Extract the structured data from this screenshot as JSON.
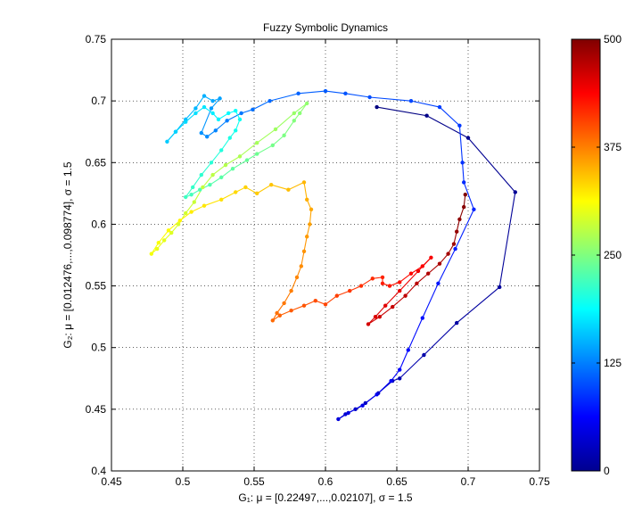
{
  "chart_data": {
    "type": "line",
    "title": "Fuzzy Symbolic Dynamics",
    "xlabel": "G₁: μ = [0.22497,...,0.02107], σ = 1.5",
    "ylabel": "G₂: μ = [0.012476,...,0.098774], σ = 1.5",
    "xlim": [
      0.45,
      0.75
    ],
    "ylim": [
      0.4,
      0.75
    ],
    "xticks": [
      "0.45",
      "0.5",
      "0.55",
      "0.6",
      "0.65",
      "0.7",
      "0.75"
    ],
    "yticks": [
      "0.4",
      "0.45",
      "0.5",
      "0.55",
      "0.6",
      "0.65",
      "0.7",
      "0.75"
    ],
    "grid": true,
    "colorbar": {
      "range": [
        0,
        500
      ],
      "ticks": [
        "0",
        "125",
        "250",
        "375",
        "500"
      ],
      "colormap": "jet"
    },
    "trajectory": {
      "t_range": [
        0,
        500
      ],
      "points": [
        [
          0.636,
          0.695
        ],
        [
          0.671,
          0.688
        ],
        [
          0.7,
          0.67
        ],
        [
          0.733,
          0.626
        ],
        [
          0.722,
          0.549
        ],
        [
          0.692,
          0.52
        ],
        [
          0.669,
          0.494
        ],
        [
          0.652,
          0.475
        ],
        [
          0.647,
          0.473
        ],
        [
          0.637,
          0.463
        ],
        [
          0.628,
          0.455
        ],
        [
          0.621,
          0.45
        ],
        [
          0.614,
          0.446
        ],
        [
          0.609,
          0.442
        ],
        [
          0.616,
          0.447
        ],
        [
          0.626,
          0.453
        ],
        [
          0.636,
          0.462
        ],
        [
          0.646,
          0.473
        ],
        [
          0.652,
          0.482
        ],
        [
          0.658,
          0.498
        ],
        [
          0.668,
          0.524
        ],
        [
          0.679,
          0.552
        ],
        [
          0.691,
          0.58
        ],
        [
          0.704,
          0.612
        ],
        [
          0.697,
          0.634
        ],
        [
          0.696,
          0.65
        ],
        [
          0.694,
          0.68
        ],
        [
          0.68,
          0.695
        ],
        [
          0.66,
          0.7
        ],
        [
          0.631,
          0.703
        ],
        [
          0.614,
          0.706
        ],
        [
          0.6,
          0.708
        ],
        [
          0.581,
          0.706
        ],
        [
          0.561,
          0.7
        ],
        [
          0.549,
          0.693
        ],
        [
          0.541,
          0.69
        ],
        [
          0.531,
          0.684
        ],
        [
          0.523,
          0.676
        ],
        [
          0.517,
          0.671
        ],
        [
          0.513,
          0.674
        ],
        [
          0.52,
          0.694
        ],
        [
          0.526,
          0.702
        ],
        [
          0.521,
          0.7
        ],
        [
          0.515,
          0.704
        ],
        [
          0.509,
          0.694
        ],
        [
          0.502,
          0.685
        ],
        [
          0.495,
          0.675
        ],
        [
          0.489,
          0.667
        ],
        [
          0.495,
          0.675
        ],
        [
          0.502,
          0.683
        ],
        [
          0.509,
          0.69
        ],
        [
          0.515,
          0.695
        ],
        [
          0.521,
          0.69
        ],
        [
          0.525,
          0.685
        ],
        [
          0.532,
          0.69
        ],
        [
          0.537,
          0.692
        ],
        [
          0.54,
          0.685
        ],
        [
          0.537,
          0.676
        ],
        [
          0.533,
          0.67
        ],
        [
          0.527,
          0.66
        ],
        [
          0.52,
          0.65
        ],
        [
          0.513,
          0.64
        ],
        [
          0.507,
          0.63
        ],
        [
          0.502,
          0.622
        ],
        [
          0.506,
          0.624
        ],
        [
          0.512,
          0.628
        ],
        [
          0.519,
          0.632
        ],
        [
          0.527,
          0.638
        ],
        [
          0.535,
          0.645
        ],
        [
          0.545,
          0.652
        ],
        [
          0.552,
          0.657
        ],
        [
          0.563,
          0.664
        ],
        [
          0.571,
          0.672
        ],
        [
          0.578,
          0.684
        ],
        [
          0.582,
          0.69
        ],
        [
          0.587,
          0.698
        ],
        [
          0.578,
          0.69
        ],
        [
          0.565,
          0.677
        ],
        [
          0.552,
          0.666
        ],
        [
          0.54,
          0.655
        ],
        [
          0.53,
          0.648
        ],
        [
          0.521,
          0.64
        ],
        [
          0.514,
          0.63
        ],
        [
          0.508,
          0.618
        ],
        [
          0.502,
          0.609
        ],
        [
          0.497,
          0.6
        ],
        [
          0.492,
          0.593
        ],
        [
          0.487,
          0.587
        ],
        [
          0.482,
          0.58
        ],
        [
          0.478,
          0.576
        ],
        [
          0.483,
          0.585
        ],
        [
          0.49,
          0.595
        ],
        [
          0.498,
          0.603
        ],
        [
          0.506,
          0.61
        ],
        [
          0.515,
          0.615
        ],
        [
          0.527,
          0.62
        ],
        [
          0.537,
          0.626
        ],
        [
          0.544,
          0.63
        ],
        [
          0.552,
          0.625
        ],
        [
          0.562,
          0.632
        ],
        [
          0.574,
          0.628
        ],
        [
          0.585,
          0.634
        ],
        [
          0.587,
          0.62
        ],
        [
          0.59,
          0.612
        ],
        [
          0.589,
          0.6
        ],
        [
          0.587,
          0.59
        ],
        [
          0.585,
          0.578
        ],
        [
          0.583,
          0.566
        ],
        [
          0.58,
          0.557
        ],
        [
          0.576,
          0.546
        ],
        [
          0.571,
          0.536
        ],
        [
          0.566,
          0.528
        ],
        [
          0.563,
          0.522
        ],
        [
          0.568,
          0.526
        ],
        [
          0.576,
          0.53
        ],
        [
          0.585,
          0.534
        ],
        [
          0.593,
          0.538
        ],
        [
          0.6,
          0.535
        ],
        [
          0.608,
          0.542
        ],
        [
          0.617,
          0.546
        ],
        [
          0.625,
          0.55
        ],
        [
          0.633,
          0.556
        ],
        [
          0.64,
          0.557
        ],
        [
          0.64,
          0.552
        ],
        [
          0.645,
          0.55
        ],
        [
          0.652,
          0.553
        ],
        [
          0.66,
          0.56
        ],
        [
          0.668,
          0.566
        ],
        [
          0.674,
          0.573
        ],
        [
          0.665,
          0.562
        ],
        [
          0.652,
          0.546
        ],
        [
          0.642,
          0.534
        ],
        [
          0.635,
          0.525
        ],
        [
          0.63,
          0.519
        ],
        [
          0.638,
          0.525
        ],
        [
          0.647,
          0.533
        ],
        [
          0.656,
          0.542
        ],
        [
          0.664,
          0.552
        ],
        [
          0.672,
          0.56
        ],
        [
          0.68,
          0.568
        ],
        [
          0.686,
          0.576
        ],
        [
          0.69,
          0.584
        ],
        [
          0.692,
          0.594
        ],
        [
          0.694,
          0.604
        ],
        [
          0.697,
          0.614
        ],
        [
          0.698,
          0.624
        ]
      ]
    }
  }
}
